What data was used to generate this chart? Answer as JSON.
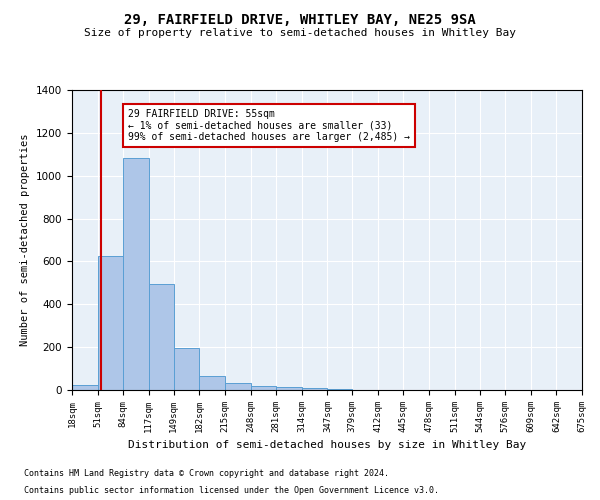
{
  "title": "29, FAIRFIELD DRIVE, WHITLEY BAY, NE25 9SA",
  "subtitle": "Size of property relative to semi-detached houses in Whitley Bay",
  "xlabel": "Distribution of semi-detached houses by size in Whitley Bay",
  "ylabel": "Number of semi-detached properties",
  "footnote1": "Contains HM Land Registry data © Crown copyright and database right 2024.",
  "footnote2": "Contains public sector information licensed under the Open Government Licence v3.0.",
  "annotation_line1": "29 FAIRFIELD DRIVE: 55sqm",
  "annotation_line2": "← 1% of semi-detached houses are smaller (33)",
  "annotation_line3": "99% of semi-detached houses are larger (2,485) →",
  "property_size": 55,
  "bin_edges": [
    18,
    51,
    84,
    117,
    149,
    182,
    215,
    248,
    281,
    314,
    347,
    379,
    412,
    445,
    478,
    511,
    544,
    576,
    609,
    642,
    675
  ],
  "bar_heights": [
    25,
    625,
    1085,
    495,
    195,
    65,
    35,
    20,
    15,
    10,
    5,
    2,
    1,
    0,
    0,
    0,
    0,
    0,
    0,
    0
  ],
  "bar_color": "#aec6e8",
  "bar_edge_color": "#5a9fd4",
  "line_color": "#cc0000",
  "annotation_box_color": "#cc0000",
  "background_color": "#e8f0f8",
  "ylim": [
    0,
    1400
  ],
  "yticks": [
    0,
    200,
    400,
    600,
    800,
    1000,
    1200,
    1400
  ]
}
